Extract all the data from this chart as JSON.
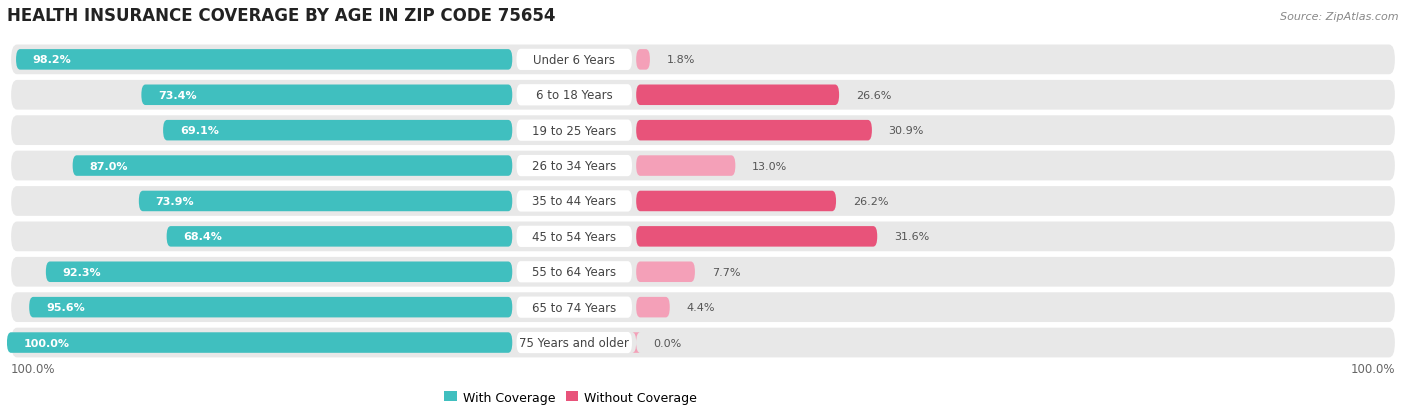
{
  "title": "HEALTH INSURANCE COVERAGE BY AGE IN ZIP CODE 75654",
  "source": "Source: ZipAtlas.com",
  "categories": [
    "Under 6 Years",
    "6 to 18 Years",
    "19 to 25 Years",
    "26 to 34 Years",
    "35 to 44 Years",
    "45 to 54 Years",
    "55 to 64 Years",
    "65 to 74 Years",
    "75 Years and older"
  ],
  "with_coverage": [
    98.2,
    73.4,
    69.1,
    87.0,
    73.9,
    68.4,
    92.3,
    95.6,
    100.0
  ],
  "without_coverage": [
    1.8,
    26.6,
    30.9,
    13.0,
    26.2,
    31.6,
    7.7,
    4.4,
    0.0
  ],
  "color_with": "#40bfbf",
  "color_without_dark": "#e8537a",
  "color_without_light": "#f4a0b8",
  "row_bg": "#e8e8e8",
  "title_fontsize": 12,
  "label_fontsize": 8.5,
  "bar_label_fontsize": 8,
  "legend_fontsize": 9,
  "source_fontsize": 8,
  "axis_label_fontsize": 8.5,
  "without_colors": [
    "#f4a0b8",
    "#e8537a",
    "#e8537a",
    "#f4a0b8",
    "#e8537a",
    "#e8537a",
    "#f4a0b8",
    "#f4a0b8",
    "#f4a0b8"
  ]
}
